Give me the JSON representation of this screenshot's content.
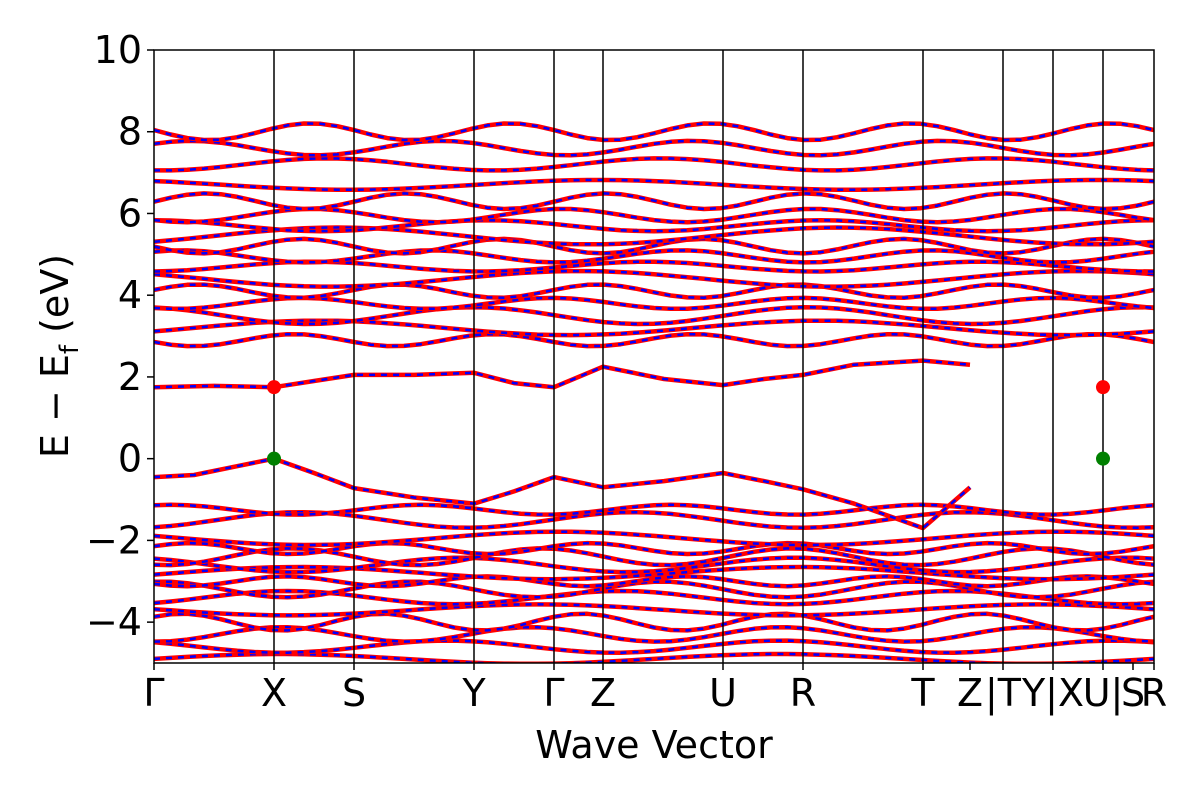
{
  "chart_data": {
    "type": "line",
    "title": "",
    "xlabel": "Wave Vector",
    "ylabel_main": "E − E",
    "ylabel_sub": "f",
    "ylabel_unit": " (eV)",
    "ylim": [
      -5,
      10
    ],
    "yticks": [
      -4,
      -2,
      0,
      2,
      4,
      6,
      8,
      10
    ],
    "ytick_labels": [
      "−4",
      "−2",
      "0",
      "2",
      "4",
      "6",
      "8",
      "10"
    ],
    "x_range": [
      0,
      1
    ],
    "kpoints": [
      {
        "label": "Γ",
        "x": 0.0
      },
      {
        "label": "X",
        "x": 0.12
      },
      {
        "label": "S",
        "x": 0.2
      },
      {
        "label": "Y",
        "x": 0.32
      },
      {
        "label": "Γ",
        "x": 0.4
      },
      {
        "label": "Z",
        "x": 0.449
      },
      {
        "label": "U",
        "x": 0.569
      },
      {
        "label": "R",
        "x": 0.649
      },
      {
        "label": "T",
        "x": 0.769
      },
      {
        "label": "Z",
        "x": 0.816
      },
      {
        "label": "|T",
        "x": 0.849
      },
      {
        "label": "Y|X",
        "x": 0.899
      },
      {
        "label": "U|",
        "x": 0.949
      },
      {
        "label": "S",
        "x": 0.979
      },
      {
        "label": "R",
        "x": 1.0
      }
    ],
    "vertical_lines_x": [
      0.12,
      0.2,
      0.32,
      0.4,
      0.449,
      0.569,
      0.649,
      0.769,
      0.849,
      0.899,
      0.949
    ],
    "series": [
      {
        "color": "#ff0000",
        "style": "solid"
      },
      {
        "color": "#0000ff",
        "style": "dashed"
      }
    ],
    "cbm_points": [
      {
        "x": 0.12,
        "y": 1.75
      },
      {
        "x": 0.949,
        "y": 1.75
      }
    ],
    "vbm_points": [
      {
        "x": 0.12,
        "y": 0.0
      },
      {
        "x": 0.949,
        "y": 0.0
      }
    ],
    "cbm_color": "#ff0000",
    "vbm_color": "#008000",
    "valence_top": [
      [
        0.0,
        -0.45
      ],
      [
        0.04,
        -0.4
      ],
      [
        0.08,
        -0.2
      ],
      [
        0.12,
        0.0
      ],
      [
        0.16,
        -0.35
      ],
      [
        0.2,
        -0.72
      ],
      [
        0.26,
        -0.95
      ],
      [
        0.32,
        -1.1
      ],
      [
        0.36,
        -0.8
      ],
      [
        0.4,
        -0.45
      ],
      [
        0.449,
        -0.7
      ],
      [
        0.51,
        -0.55
      ],
      [
        0.569,
        -0.35
      ],
      [
        0.61,
        -0.55
      ],
      [
        0.649,
        -0.75
      ],
      [
        0.7,
        -1.1
      ],
      [
        0.769,
        -1.7
      ],
      [
        0.816,
        -0.7
      ]
    ],
    "conduction_bottom": [
      [
        0.0,
        1.75
      ],
      [
        0.06,
        1.78
      ],
      [
        0.12,
        1.75
      ],
      [
        0.16,
        1.9
      ],
      [
        0.2,
        2.05
      ],
      [
        0.26,
        2.05
      ],
      [
        0.32,
        2.1
      ],
      [
        0.36,
        1.85
      ],
      [
        0.4,
        1.75
      ],
      [
        0.449,
        2.25
      ],
      [
        0.51,
        1.95
      ],
      [
        0.569,
        1.8
      ],
      [
        0.61,
        1.95
      ],
      [
        0.649,
        2.05
      ],
      [
        0.7,
        2.3
      ],
      [
        0.769,
        2.4
      ],
      [
        0.816,
        2.3
      ]
    ],
    "band_levels": [
      -4.9,
      -4.6,
      -4.3,
      -4.0,
      -3.7,
      -3.4,
      -3.2,
      -3.0,
      -2.8,
      -2.6,
      -2.4,
      -2.2,
      -1.95,
      -1.5,
      -1.25,
      2.9,
      3.2,
      3.5,
      3.8,
      4.1,
      4.4,
      4.7,
      4.95,
      5.2,
      5.45,
      5.7,
      5.95,
      6.3,
      6.7,
      7.2,
      7.6,
      8.0
    ],
    "segment_breaks": [
      0.816,
      0.849,
      0.899,
      0.949
    ]
  }
}
